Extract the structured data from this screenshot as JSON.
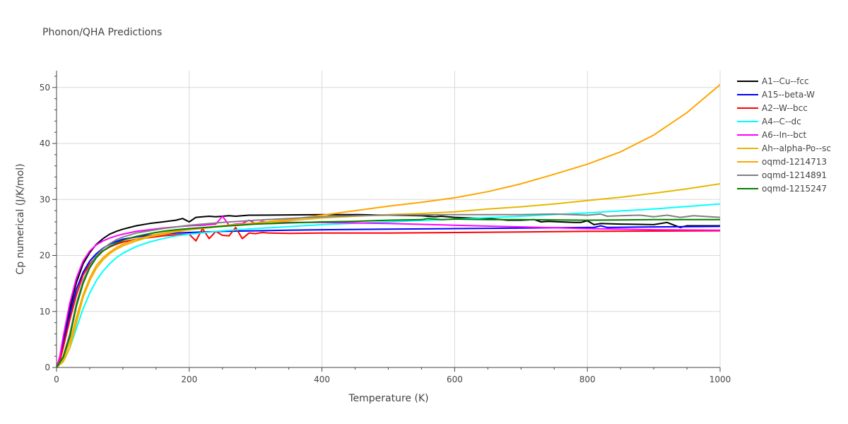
{
  "chart_data": {
    "type": "line",
    "title": "Phonon/QHA Predictions",
    "xlabel": "Temperature (K)",
    "ylabel": "Cp numerical (J/K/mol)",
    "xlim": [
      0,
      1000
    ],
    "ylim": [
      0,
      53
    ],
    "xticks": [
      0,
      200,
      400,
      600,
      800,
      1000
    ],
    "yticks": [
      0,
      10,
      20,
      30,
      40,
      50
    ],
    "grid": true,
    "legend_position": "right",
    "series": [
      {
        "name": "A1--Cu--fcc",
        "color": "#000000",
        "x": [
          0,
          5,
          10,
          20,
          30,
          40,
          50,
          60,
          70,
          80,
          90,
          100,
          120,
          140,
          160,
          180,
          190,
          200,
          210,
          220,
          230,
          240,
          250,
          260,
          270,
          280,
          290,
          300,
          350,
          400,
          450,
          500,
          550,
          560,
          570,
          580,
          600,
          650,
          660,
          670,
          680,
          700,
          720,
          730,
          740,
          760,
          780,
          790,
          800,
          810,
          820,
          850,
          900,
          920,
          940,
          950,
          1000
        ],
        "y": [
          0,
          1.5,
          4.5,
          10.5,
          15.2,
          18.5,
          20.5,
          22,
          23,
          23.8,
          24.3,
          24.7,
          25.3,
          25.7,
          26,
          26.3,
          26.6,
          26,
          26.8,
          26.9,
          27,
          26.9,
          27,
          27.1,
          27,
          27.1,
          27.2,
          27.2,
          27.25,
          27.3,
          27.3,
          27.2,
          27.1,
          27,
          26.9,
          27,
          26.8,
          26.6,
          26.5,
          26.4,
          26.3,
          26.3,
          26.4,
          26,
          26.1,
          26,
          25.9,
          25.9,
          26.2,
          25.5,
          25.7,
          25.6,
          25.5,
          25.9,
          25,
          25.3,
          25.3
        ]
      },
      {
        "name": "A15--beta-W",
        "color": "#0000ff",
        "x": [
          0,
          5,
          10,
          20,
          30,
          40,
          50,
          60,
          70,
          80,
          90,
          100,
          120,
          140,
          160,
          180,
          200,
          250,
          300,
          350,
          400,
          500,
          600,
          700,
          800,
          810,
          820,
          830,
          900,
          1000
        ],
        "y": [
          0,
          1.4,
          4,
          9.5,
          14,
          17,
          19,
          20.3,
          21.3,
          22,
          22.5,
          22.9,
          23.3,
          23.6,
          23.8,
          24,
          24.1,
          24.3,
          24.4,
          24.5,
          24.6,
          24.7,
          24.8,
          24.9,
          25,
          25,
          25.3,
          25,
          25.1,
          25.2
        ]
      },
      {
        "name": "A2--W--bcc",
        "color": "#ff0000",
        "x": [
          0,
          5,
          10,
          20,
          30,
          40,
          50,
          60,
          70,
          80,
          90,
          100,
          120,
          140,
          160,
          180,
          200,
          210,
          220,
          230,
          240,
          250,
          260,
          270,
          280,
          290,
          300,
          310,
          320,
          350,
          400,
          500,
          600,
          700,
          800,
          900,
          1000
        ],
        "y": [
          0,
          1.2,
          3.5,
          8.5,
          13,
          16.5,
          18.5,
          19.8,
          20.8,
          21.5,
          22,
          22.4,
          22.9,
          23.2,
          23.5,
          23.7,
          23.8,
          22.6,
          24.8,
          23,
          24.3,
          23.6,
          23.5,
          25,
          23,
          24,
          23.9,
          24.1,
          24,
          23.95,
          24,
          24,
          24.1,
          24.2,
          24.3,
          24.35,
          24.4
        ]
      },
      {
        "name": "A4--C--dc",
        "color": "#00ffff",
        "x": [
          0,
          10,
          20,
          30,
          40,
          50,
          60,
          70,
          80,
          90,
          100,
          120,
          140,
          160,
          180,
          200,
          250,
          300,
          400,
          500,
          600,
          700,
          800,
          900,
          1000
        ],
        "y": [
          0,
          1.2,
          3.5,
          7,
          10.5,
          13.3,
          15.5,
          17.2,
          18.5,
          19.6,
          20.4,
          21.6,
          22.4,
          23,
          23.5,
          23.8,
          24.4,
          24.8,
          25.5,
          26,
          26.5,
          27,
          27.6,
          28.3,
          29.2
        ]
      },
      {
        "name": "A6--In--bct",
        "color": "#ff00ff",
        "x": [
          0,
          5,
          10,
          20,
          30,
          40,
          50,
          60,
          70,
          80,
          90,
          100,
          120,
          140,
          160,
          180,
          200,
          220,
          240,
          250,
          260,
          270,
          280,
          290,
          300,
          310,
          320,
          350,
          400,
          450,
          500,
          600,
          700,
          800,
          900,
          1000
        ],
        "y": [
          0,
          2,
          5.5,
          11.5,
          16,
          19,
          20.8,
          21.9,
          22.6,
          23.1,
          23.5,
          23.8,
          24.3,
          24.6,
          24.9,
          25.1,
          25.3,
          25.4,
          25.6,
          27,
          25.4,
          25.6,
          25.7,
          26.3,
          25.7,
          26.1,
          25.9,
          25.9,
          25.9,
          25.8,
          25.7,
          25.4,
          25.1,
          24.8,
          24.6,
          24.5
        ]
      },
      {
        "name": "Ah--alpha-Po--sc",
        "color": "#e6b800",
        "x": [
          0,
          10,
          20,
          30,
          40,
          50,
          60,
          70,
          80,
          90,
          100,
          120,
          140,
          160,
          180,
          200,
          250,
          300,
          350,
          400,
          450,
          500,
          550,
          600,
          650,
          700,
          750,
          800,
          850,
          900,
          950,
          1000
        ],
        "y": [
          0,
          1,
          3.5,
          8,
          12.5,
          15.5,
          17.7,
          19.2,
          20.3,
          21.1,
          21.7,
          22.6,
          23.3,
          23.8,
          24.2,
          24.6,
          25.2,
          25.7,
          26.2,
          26.7,
          27,
          27.3,
          27.5,
          27.8,
          28.3,
          28.7,
          29.2,
          29.8,
          30.4,
          31.1,
          31.9,
          32.8
        ]
      },
      {
        "name": "oqmd-1214713",
        "color": "#ffa500",
        "x": [
          0,
          10,
          20,
          30,
          40,
          50,
          60,
          70,
          80,
          90,
          100,
          120,
          140,
          160,
          180,
          200,
          250,
          300,
          350,
          400,
          450,
          500,
          550,
          600,
          650,
          700,
          750,
          800,
          850,
          900,
          950,
          1000
        ],
        "y": [
          0,
          1.5,
          4.5,
          9,
          13,
          16,
          18.2,
          19.6,
          20.6,
          21.4,
          22,
          22.9,
          23.5,
          24,
          24.4,
          24.7,
          25.3,
          25.8,
          26.4,
          27.2,
          28,
          28.8,
          29.5,
          30.3,
          31.4,
          32.8,
          34.5,
          36.3,
          38.5,
          41.5,
          45.5,
          50.5
        ]
      },
      {
        "name": "oqmd-1214891",
        "color": "#808080",
        "x": [
          0,
          10,
          20,
          30,
          40,
          50,
          60,
          70,
          80,
          90,
          100,
          120,
          140,
          160,
          180,
          200,
          250,
          300,
          350,
          400,
          450,
          500,
          600,
          700,
          750,
          800,
          820,
          830,
          850,
          880,
          900,
          920,
          940,
          960,
          1000
        ],
        "y": [
          0,
          2,
          6,
          11.5,
          15.5,
          18.2,
          20,
          21.2,
          22.1,
          22.8,
          23.3,
          24,
          24.4,
          24.8,
          25.1,
          25.4,
          25.9,
          26.3,
          26.6,
          26.9,
          27.1,
          27.2,
          27.3,
          27.3,
          27.4,
          27.2,
          27.4,
          27,
          27.1,
          27.2,
          26.9,
          27.2,
          26.8,
          27.1,
          26.8
        ]
      },
      {
        "name": "oqmd-1215247",
        "color": "#008000",
        "x": [
          0,
          10,
          20,
          30,
          40,
          50,
          60,
          70,
          80,
          90,
          100,
          120,
          140,
          160,
          180,
          200,
          250,
          300,
          350,
          400,
          450,
          500,
          550,
          560,
          580,
          600,
          650,
          700,
          800,
          900,
          1000
        ],
        "y": [
          0,
          1.8,
          5.5,
          11,
          15,
          17.8,
          19.6,
          20.8,
          21.6,
          22.2,
          22.7,
          23.4,
          23.9,
          24.3,
          24.6,
          24.8,
          25.2,
          25.6,
          25.8,
          26,
          26.1,
          26.3,
          26.4,
          26.6,
          26.4,
          26.5,
          26.4,
          26.4,
          26.3,
          26.4,
          26.4
        ]
      }
    ]
  }
}
